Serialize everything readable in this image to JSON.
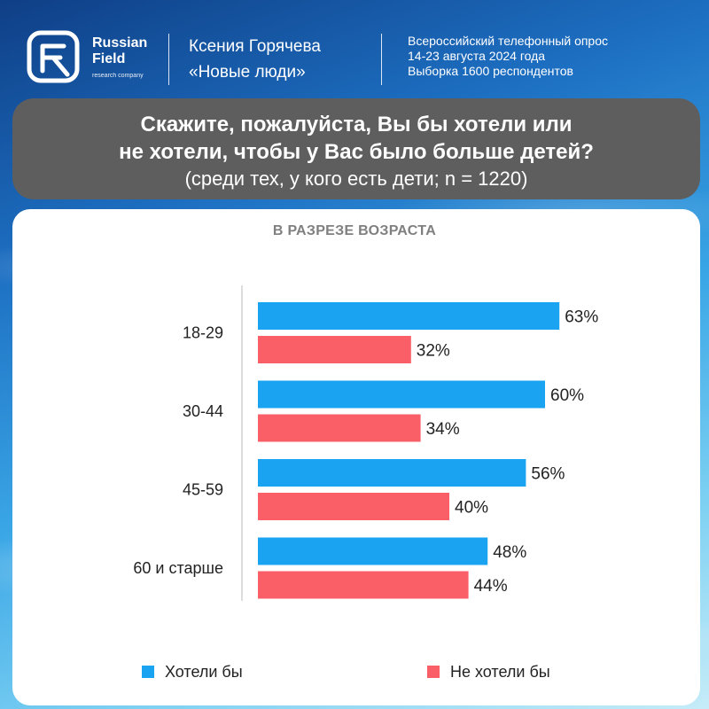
{
  "header": {
    "brand": [
      "Russian",
      "Field"
    ],
    "brand_sub": "research company",
    "author": [
      "Ксения Горячева",
      "«Новые люди»"
    ],
    "survey": [
      "Всероссийский телефонный опрос",
      "14-23 августа 2024 года",
      "Выборка 1600 респондентов"
    ]
  },
  "question": {
    "lines": [
      "Скажите, пожалуйста, Вы бы хотели или",
      "не хотели, чтобы у Вас было больше детей?"
    ],
    "sub": "(среди тех, у кого есть дети; n = 1220)"
  },
  "colors": {
    "want": "#1aa3f0",
    "not_want": "#fa5f67",
    "question_bg": "#5e5e5e"
  },
  "chart_data": {
    "type": "bar",
    "orientation": "horizontal",
    "title": "В РАЗРЕЗЕ ВОЗРАСТА",
    "categories": [
      "18-29",
      "30-44",
      "45-59",
      "60 и старше"
    ],
    "series": [
      {
        "name": "Хотели бы",
        "values": [
          63,
          60,
          56,
          48
        ],
        "labels": [
          "63%",
          "60%",
          "56%",
          "48%"
        ],
        "color": "#1aa3f0"
      },
      {
        "name": "Не хотели бы",
        "values": [
          32,
          34,
          40,
          44
        ],
        "labels": [
          "32%",
          "34%",
          "40%",
          "44%"
        ],
        "color": "#fa5f67"
      }
    ],
    "unit": "%",
    "xlim": [
      0,
      100
    ],
    "legend": "bottom",
    "grid": false
  }
}
